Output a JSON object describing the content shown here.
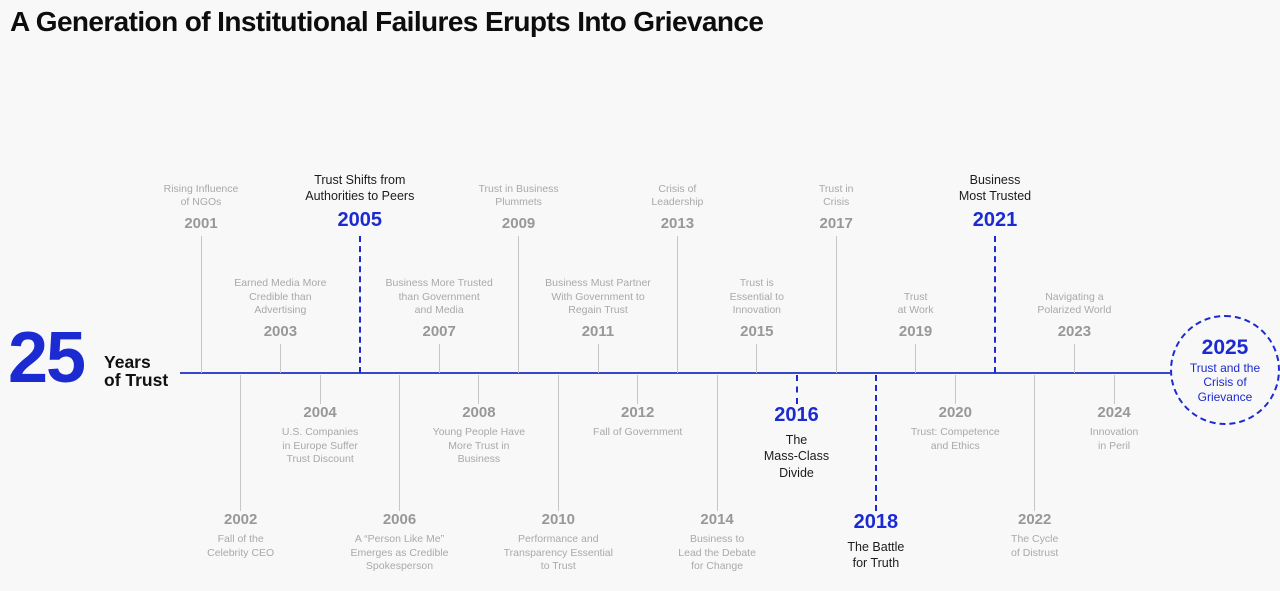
{
  "title": "A Generation of Institutional Failures Erupts Into Grievance",
  "brand": {
    "number": "25",
    "label": "Years\nof Trust"
  },
  "colors": {
    "accent_blue": "#1c2bd1",
    "timeline_blue": "#3647c9",
    "connector_gray": "#c6c6c8",
    "label_gray": "#a9a9ab",
    "year_gray": "#98989b",
    "highlight_label_black": "#1c1c1c",
    "background": "#f8f8f8"
  },
  "final_node": {
    "year": "2025",
    "label": "Trust and the\nCrisis of\nGrievance"
  },
  "chart_data": {
    "type": "table",
    "title": "A Generation of Institutional Failures Erupts Into Grievance",
    "series_name": "25 Years of Trust timeline",
    "x_range": [
      2001,
      2025
    ],
    "highlighted_years": [
      2005,
      2016,
      2018,
      2021,
      2025
    ],
    "events": [
      {
        "year": "2001",
        "label": "Rising Influence\nof NGOs",
        "highlight": false
      },
      {
        "year": "2002",
        "label": "Fall of the\nCelebrity CEO",
        "highlight": false
      },
      {
        "year": "2003",
        "label": "Earned Media More\nCredible than\nAdvertising",
        "highlight": false
      },
      {
        "year": "2004",
        "label": "U.S. Companies\nin Europe Suffer\nTrust Discount",
        "highlight": false
      },
      {
        "year": "2005",
        "label": "Trust Shifts from\nAuthorities to Peers",
        "highlight": true
      },
      {
        "year": "2006",
        "label": "A “Person Like Me”\nEmerges as Credible\nSpokesperson",
        "highlight": false
      },
      {
        "year": "2007",
        "label": "Business More Trusted\nthan Government\nand Media",
        "highlight": false
      },
      {
        "year": "2008",
        "label": "Young People Have\nMore Trust in\nBusiness",
        "highlight": false
      },
      {
        "year": "2009",
        "label": "Trust in Business\nPlummets",
        "highlight": false
      },
      {
        "year": "2010",
        "label": "Performance and\nTransparency Essential\nto Trust",
        "highlight": false
      },
      {
        "year": "2011",
        "label": "Business Must Partner\nWith Government to\nRegain Trust",
        "highlight": false
      },
      {
        "year": "2012",
        "label": "Fall of Government",
        "highlight": false
      },
      {
        "year": "2013",
        "label": "Crisis of\nLeadership",
        "highlight": false
      },
      {
        "year": "2014",
        "label": "Business to\nLead the Debate\nfor Change",
        "highlight": false
      },
      {
        "year": "2015",
        "label": "Trust is\nEssential to\nInnovation",
        "highlight": false
      },
      {
        "year": "2016",
        "label": "The\nMass-Class\nDivide",
        "highlight": true
      },
      {
        "year": "2017",
        "label": "Trust in\nCrisis",
        "highlight": false
      },
      {
        "year": "2018",
        "label": "The Battle\nfor Truth",
        "highlight": true
      },
      {
        "year": "2019",
        "label": "Trust\nat Work",
        "highlight": false
      },
      {
        "year": "2020",
        "label": "Trust: Competence\nand Ethics",
        "highlight": false
      },
      {
        "year": "2021",
        "label": "Business\nMost Trusted",
        "highlight": true
      },
      {
        "year": "2022",
        "label": "The Cycle\nof Distrust",
        "highlight": false
      },
      {
        "year": "2023",
        "label": "Navigating a\nPolarized World",
        "highlight": false
      },
      {
        "year": "2024",
        "label": "Innovation\nin Peril",
        "highlight": false
      }
    ]
  }
}
